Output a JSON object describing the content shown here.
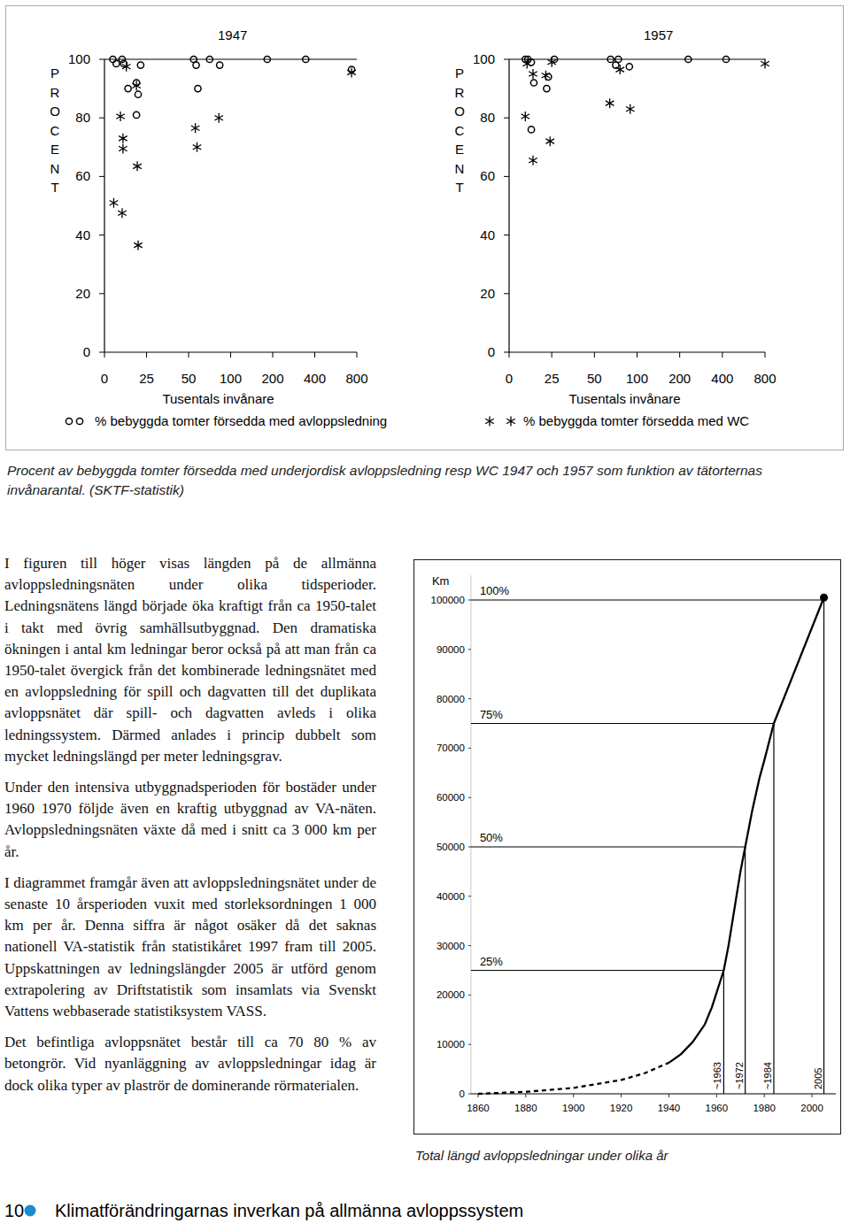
{
  "chart_data": [
    {
      "type": "scatter",
      "title": "1947",
      "x_label": "Tusentals invånare",
      "y_label": "PROCENT",
      "xlim": [
        0,
        800
      ],
      "xticks": [
        0,
        25,
        50,
        100,
        200,
        400,
        800
      ],
      "ylim": [
        0,
        100
      ],
      "yticks": [
        0,
        20,
        40,
        60,
        80,
        100
      ],
      "legend": "bottom",
      "series": [
        {
          "name": "% bebyggda tomter försedda med avloppsledning",
          "marker": "circle",
          "x": [
            5,
            7,
            10.5,
            11.5,
            14,
            19,
            20,
            21.5,
            19,
            56,
            59,
            61,
            75,
            87,
            187,
            357,
            750
          ],
          "values": [
            100,
            98.5,
            100,
            98.5,
            90,
            92,
            88,
            98,
            81,
            100,
            98,
            90,
            100,
            98,
            100,
            100,
            96.5
          ]
        },
        {
          "marker": "asterisk",
          "x": [
            13,
            9.5,
            11,
            11,
            19.5,
            5.5,
            10.5,
            20,
            19,
            58,
            60,
            86,
            750
          ],
          "values": [
            97.5,
            80.5,
            73,
            69.5,
            63.5,
            51,
            47.5,
            36.5,
            91,
            76.5,
            70,
            80,
            95.5
          ]
        }
      ]
    },
    {
      "type": "scatter",
      "title": "1957",
      "x_label": "Tusentals invånare",
      "y_label": "PROCENT",
      "xlim": [
        0,
        800
      ],
      "xticks": [
        0,
        25,
        50,
        100,
        200,
        400,
        800
      ],
      "ylim": [
        0,
        100
      ],
      "yticks": [
        0,
        20,
        40,
        60,
        80,
        100
      ],
      "legend": "bottom",
      "series": [
        {
          "marker": "circle",
          "x": [
            9.5,
            11,
            13,
            14.5,
            23,
            22,
            26.5,
            13,
            69,
            78,
            75,
            91,
            240,
            435
          ],
          "values": [
            100,
            100,
            99,
            92,
            94,
            90,
            100,
            76,
            100,
            100,
            98,
            97.5,
            100,
            100
          ]
        },
        {
          "name": "% bebyggda tomter försedda med WC",
          "marker": "asterisk",
          "x": [
            10.5,
            14,
            21.5,
            25,
            9.5,
            24,
            14,
            80,
            68,
            92,
            800
          ],
          "values": [
            98.5,
            95,
            94.5,
            99,
            80.5,
            72,
            65.5,
            96.5,
            85,
            83,
            98.5
          ]
        }
      ]
    },
    {
      "type": "line",
      "title": "Total längd avloppsledningar under olika år",
      "y_label": "Km",
      "x": [
        1860,
        1880,
        1900,
        1920,
        1930,
        1940,
        1945,
        1950,
        1955,
        1958,
        1960,
        1963,
        1965,
        1968,
        1970,
        1972,
        1975,
        1978,
        1980,
        1984,
        2005
      ],
      "xlim": [
        1857,
        2010
      ],
      "xticks": [
        1860,
        1880,
        1900,
        1920,
        1940,
        1960,
        1980,
        2000
      ],
      "ylim": [
        0,
        105000
      ],
      "yticks": [
        0,
        10000,
        20000,
        30000,
        40000,
        50000,
        60000,
        70000,
        80000,
        90000,
        100000
      ],
      "series": [
        {
          "line_style": "dashed",
          "values": [
            0,
            400,
            1200,
            2800,
            4200,
            6300,
            null,
            null,
            null,
            null,
            null,
            null,
            null,
            null,
            null,
            null,
            null,
            null,
            null,
            null,
            null
          ]
        },
        {
          "line_style": "solid",
          "marker": "end",
          "values": [
            null,
            null,
            null,
            null,
            null,
            6300,
            8000,
            10500,
            14000,
            17500,
            20500,
            25000,
            30000,
            39000,
            45000,
            50000,
            57500,
            64000,
            67500,
            75000,
            100500
          ]
        }
      ],
      "milestones": [
        {
          "value": 25000,
          "label": "25%",
          "year": 1963,
          "year_label": "~1963"
        },
        {
          "value": 50000,
          "label": "50%",
          "year": 1972,
          "year_label": "~1972"
        },
        {
          "value": 75000,
          "label": "75%",
          "year": 1984,
          "year_label": "~1984"
        },
        {
          "value": 100000,
          "label": "100%",
          "year": 2005,
          "year_label": "2005"
        }
      ]
    }
  ],
  "figure_caption": "Procent av bebyggda tomter försedda med underjordisk avloppsledning resp WC 1947 och 1957 som funktion av tätorternas invånarantal. (SKTF-statistik)",
  "paragraphs": [
    "I figuren till höger visas längden på de allmänna avloppsledningsnäten under olika tidsperioder. Ledningsnätens längd började öka kraftigt från ca 1950-talet i takt med övrig samhällsutbyggnad. Den dramatiska ökningen i antal km ledningar beror också på att man från ca 1950-talet övergick från det kombinerade ledningsnätet med en avloppsledning för spill och dagvatten till det duplikata avloppsnätet där spill- och dagvatten avleds i olika ledningssystem. Därmed anlades i princip dubbelt som mycket ledningslängd per meter ledningsgrav.",
    "Under den intensiva utbyggnadsperioden för bostäder under 1960 1970 följde även en kraftig utbyggnad av VA-näten. Avloppsledningsnäten växte då med i snitt ca 3 000 km per år.",
    "I diagrammet framgår även att avloppsledningsnätet under de senaste 10 årsperioden vuxit med storleksordningen 1 000 km per år. Denna siffra är något osäker då det saknas nationell VA-statistik från statistikåret 1997 fram till 2005. Uppskattningen av ledningslängder 2005 är utförd genom extrapolering av Driftstatistik som insamlats via Svenskt Vattens webbaserade statistiksystem VASS.",
    "Det befintliga avloppsnätet består till ca 70 80 % av betongrör. Vid nyanläggning av avloppsledningar idag är dock olika typer av plaströr de dominerande rörmaterialen."
  ],
  "footer": {
    "page": "10",
    "title": "Klimatförändringarnas inverkan på allmänna avloppssystem"
  }
}
